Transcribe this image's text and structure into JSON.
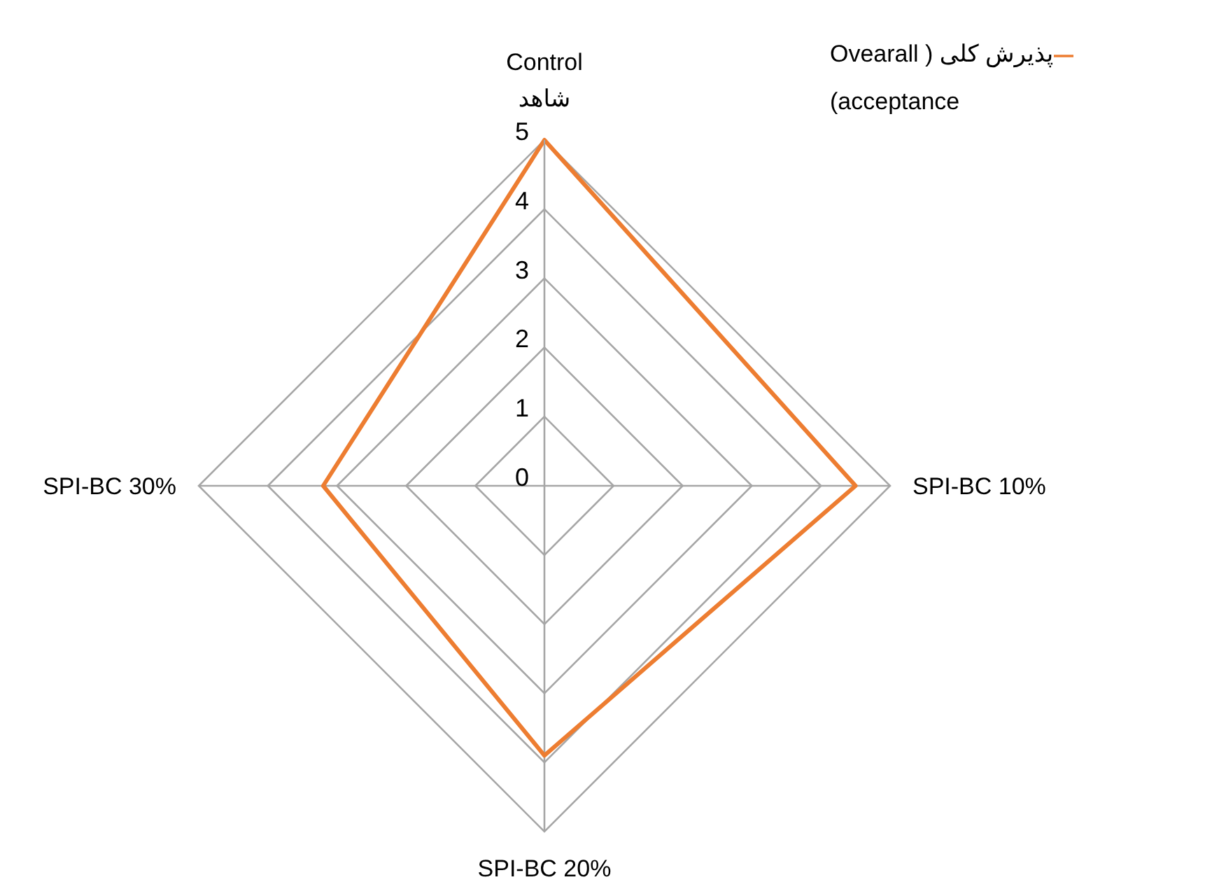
{
  "chart_data": {
    "type": "radar",
    "categories": [
      "Control\nشاهد",
      "SPI-BC 10%",
      "SPI-BC 20%",
      "SPI-BC 30%"
    ],
    "series": [
      {
        "name": "پذیرش کلی ( Ovearall acceptance)",
        "color": "#ed7d31",
        "values": [
          5,
          4.5,
          3.9,
          3.2
        ]
      }
    ],
    "ylim": [
      0,
      5
    ],
    "yticks": [
      0,
      1,
      2,
      3,
      4,
      5
    ],
    "grid": true,
    "legend": "top right",
    "marker": "none"
  }
}
